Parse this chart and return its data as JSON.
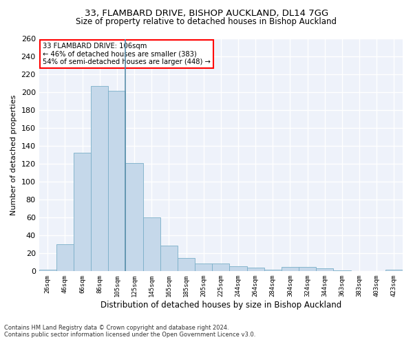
{
  "title": "33, FLAMBARD DRIVE, BISHOP AUCKLAND, DL14 7GG",
  "subtitle": "Size of property relative to detached houses in Bishop Auckland",
  "xlabel": "Distribution of detached houses by size in Bishop Auckland",
  "ylabel": "Number of detached properties",
  "bar_color": "#c5d8ea",
  "bar_edge_color": "#7aafc8",
  "vline_color": "#5a8faa",
  "background_color": "#eef2fa",
  "grid_color": "#ffffff",
  "categories": [
    "26sqm",
    "46sqm",
    "66sqm",
    "86sqm",
    "105sqm",
    "125sqm",
    "145sqm",
    "165sqm",
    "185sqm",
    "205sqm",
    "225sqm",
    "244sqm",
    "264sqm",
    "284sqm",
    "304sqm",
    "324sqm",
    "344sqm",
    "363sqm",
    "383sqm",
    "403sqm",
    "423sqm"
  ],
  "values": [
    2,
    30,
    133,
    207,
    202,
    121,
    60,
    29,
    15,
    9,
    9,
    6,
    4,
    2,
    5,
    5,
    3,
    1,
    0,
    0,
    2
  ],
  "ylim": [
    0,
    260
  ],
  "yticks": [
    0,
    20,
    40,
    60,
    80,
    100,
    120,
    140,
    160,
    180,
    200,
    220,
    240,
    260
  ],
  "vline_x": 4.5,
  "annotation_title": "33 FLAMBARD DRIVE: 106sqm",
  "annotation_line1": "← 46% of detached houses are smaller (383)",
  "annotation_line2": "54% of semi-detached houses are larger (448) →",
  "footnote1": "Contains HM Land Registry data © Crown copyright and database right 2024.",
  "footnote2": "Contains public sector information licensed under the Open Government Licence v3.0."
}
